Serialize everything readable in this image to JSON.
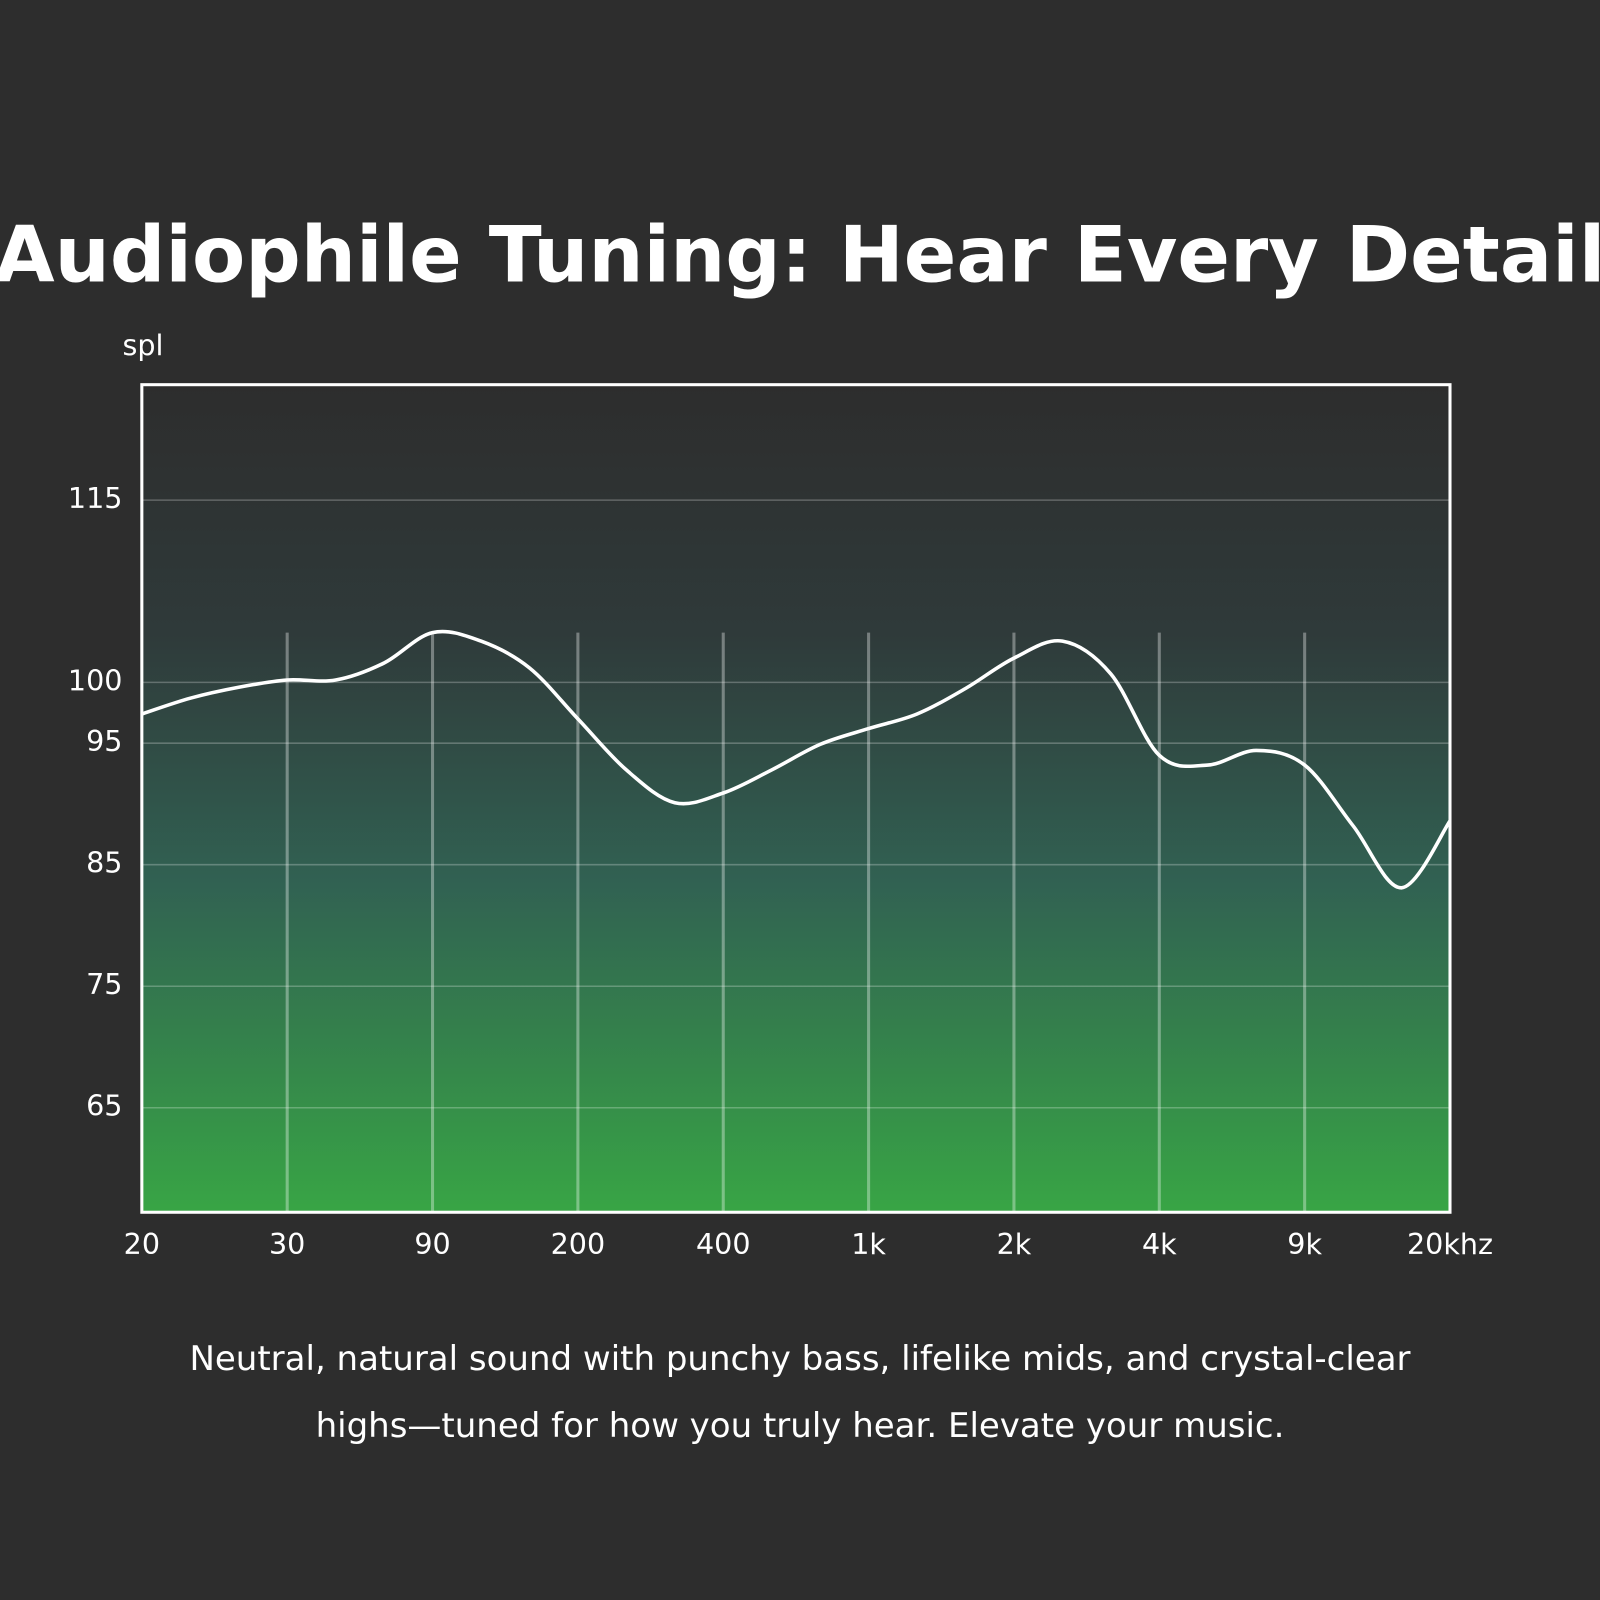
{
  "chart_data": {
    "type": "line",
    "title": "Audiophile Tuning: Hear Every Detail",
    "y_label": "spl",
    "description": "Neutral, natural sound with punchy bass, lifelike mids, and crystal-clear highs—tuned for how you truly hear. Elevate your music.",
    "categories": [
      "20",
      null,
      null,
      "30",
      null,
      null,
      "90",
      null,
      null,
      "200",
      null,
      null,
      "400",
      null,
      null,
      "1k",
      null,
      null,
      "2k",
      null,
      null,
      "4k",
      null,
      null,
      "9k",
      null,
      null,
      "20khz"
    ],
    "series": [
      {
        "name": "frequency response",
        "color": "#ffffff",
        "values": [
          97.4,
          98.7,
          99.6,
          100.2,
          100.2,
          101.6,
          104.1,
          103.4,
          101.2,
          97.0,
          92.8,
          90.1,
          90.9,
          92.8,
          94.9,
          96.2,
          97.4,
          99.5,
          102.0,
          103.4,
          100.7,
          94.0,
          93.2,
          94.4,
          93.2,
          88.2,
          83.1,
          88.6
        ]
      }
    ],
    "ylim": [
      56.4,
      124.5
    ],
    "yticks": [
      65,
      75,
      85,
      95,
      100,
      115
    ],
    "grid": true
  }
}
